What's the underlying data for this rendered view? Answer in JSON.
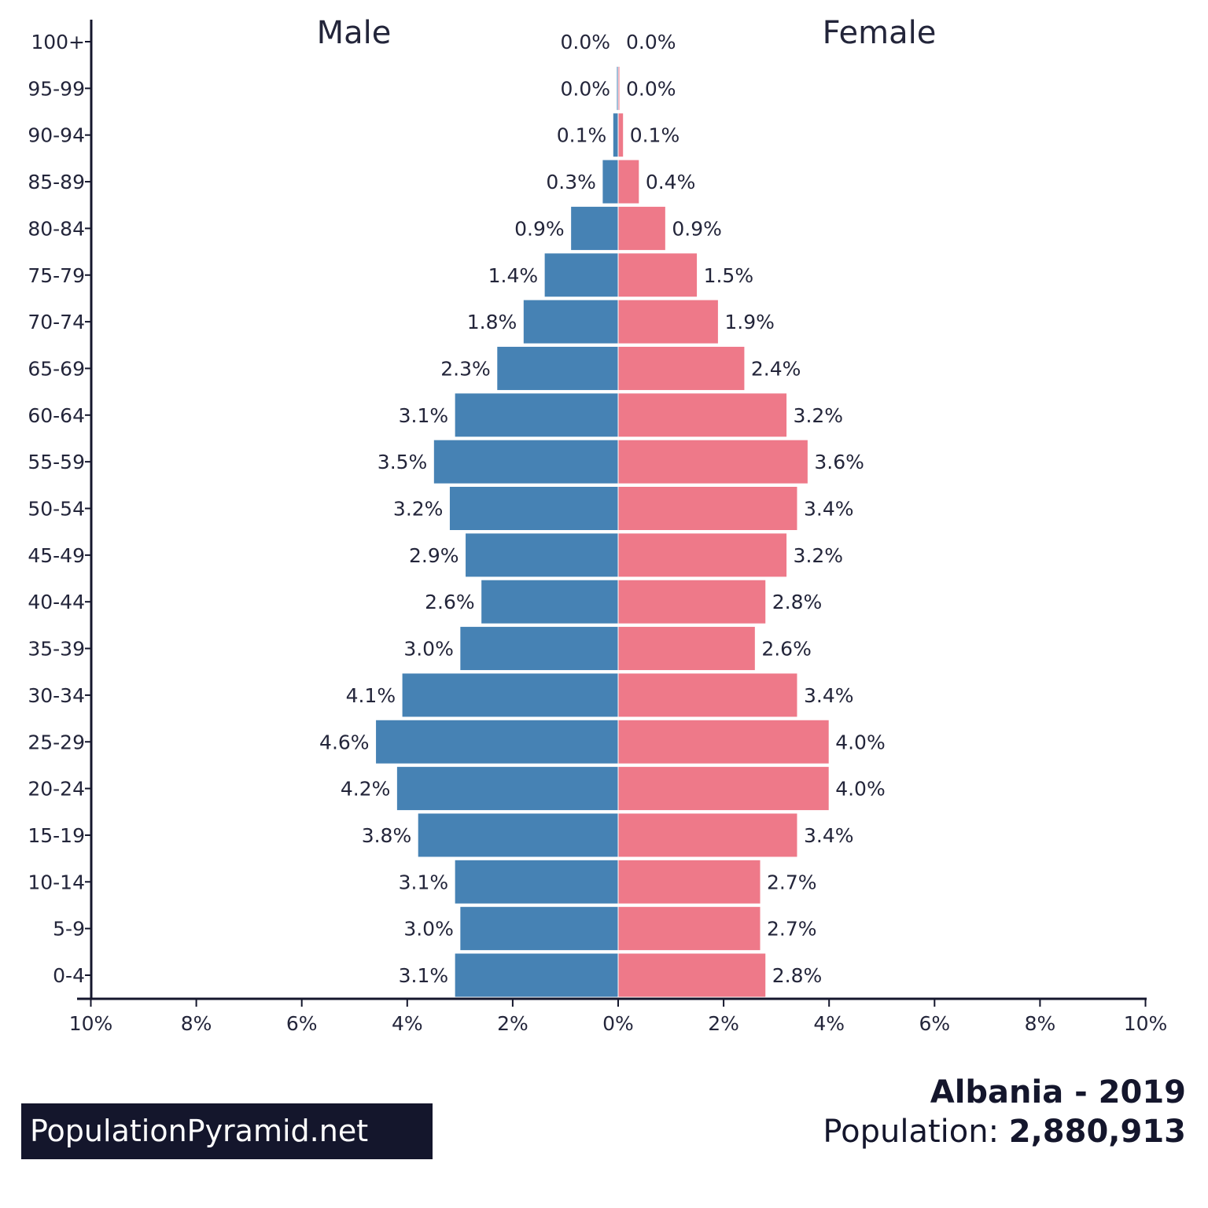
{
  "chart_data": {
    "type": "bar",
    "orientation": "horizontal-pyramid",
    "title": "Albania - 2019",
    "population_label": "Population:",
    "population_value": "2,880,913",
    "brand": "PopulationPyramid.net",
    "left_label": "Male",
    "right_label": "Female",
    "xlim": [
      -10,
      10
    ],
    "x_ticks": [
      "10%",
      "8%",
      "6%",
      "4%",
      "2%",
      "0%",
      "2%",
      "4%",
      "6%",
      "8%",
      "10%"
    ],
    "x_tick_values": [
      -10,
      -8,
      -6,
      -4,
      -2,
      0,
      2,
      4,
      6,
      8,
      10
    ],
    "categories": [
      "100+",
      "95-99",
      "90-94",
      "85-89",
      "80-84",
      "75-79",
      "70-74",
      "65-69",
      "60-64",
      "55-59",
      "50-54",
      "45-49",
      "40-44",
      "35-39",
      "30-34",
      "25-29",
      "20-24",
      "15-19",
      "10-14",
      "5-9",
      "0-4"
    ],
    "series": [
      {
        "name": "Male",
        "color": "#4682b4",
        "values": [
          0.0,
          0.0,
          0.1,
          0.3,
          0.9,
          1.4,
          1.8,
          2.3,
          3.1,
          3.5,
          3.2,
          2.9,
          2.6,
          3.0,
          4.1,
          4.6,
          4.2,
          3.8,
          3.1,
          3.0,
          3.1
        ]
      },
      {
        "name": "Female",
        "color": "#ee7989",
        "values": [
          0.0,
          0.0,
          0.1,
          0.4,
          0.9,
          1.5,
          1.9,
          2.4,
          3.2,
          3.6,
          3.4,
          3.2,
          2.8,
          2.6,
          3.4,
          4.0,
          4.0,
          3.4,
          2.7,
          2.7,
          2.8
        ]
      }
    ],
    "grid": false
  }
}
